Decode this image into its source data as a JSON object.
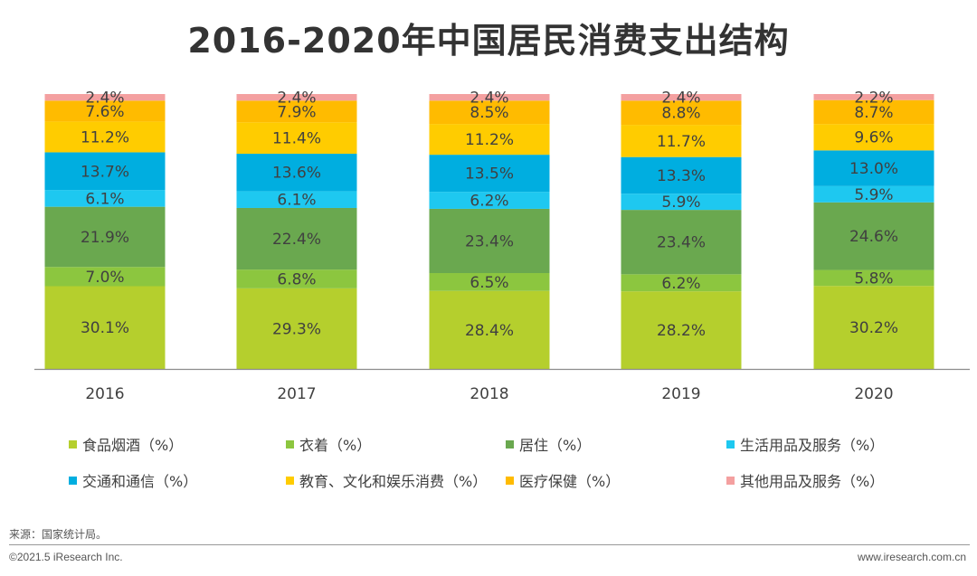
{
  "chart_data": {
    "type": "bar",
    "stacked": true,
    "title": "2016-2020年中国居民消费支出结构",
    "categories": [
      "2016",
      "2017",
      "2018",
      "2019",
      "2020"
    ],
    "series": [
      {
        "name": "食品烟酒（%）",
        "color": "#b5cf2d",
        "values": [
          30.1,
          29.3,
          28.4,
          28.2,
          30.2
        ]
      },
      {
        "name": "衣着（%）",
        "color": "#8cc63f",
        "values": [
          7.0,
          6.8,
          6.5,
          6.2,
          5.8
        ]
      },
      {
        "name": "居住（%）",
        "color": "#6aa84f",
        "values": [
          21.9,
          22.4,
          23.4,
          23.4,
          24.6
        ]
      },
      {
        "name": "生活用品及服务（%）",
        "color": "#1ec8f0",
        "values": [
          6.1,
          6.1,
          6.2,
          5.9,
          5.9
        ]
      },
      {
        "name": "交通和通信（%）",
        "color": "#00aee0",
        "values": [
          13.7,
          13.6,
          13.5,
          13.3,
          13.0
        ]
      },
      {
        "name": "教育、文化和娱乐消费（%）",
        "color": "#ffcc00",
        "values": [
          11.2,
          11.4,
          11.2,
          11.7,
          9.6
        ]
      },
      {
        "name": "医疗保健（%）",
        "color": "#ffbb00",
        "values": [
          7.6,
          7.9,
          8.5,
          8.8,
          8.7
        ]
      },
      {
        "name": "其他用品及服务（%）",
        "color": "#f4a0a0",
        "values": [
          2.4,
          2.4,
          2.4,
          2.4,
          2.2
        ]
      }
    ],
    "ylim": [
      0,
      100
    ],
    "xlabel": "",
    "ylabel": "",
    "legend_position": "bottom",
    "legend_order": [
      0,
      1,
      2,
      3,
      4,
      5,
      6,
      7
    ]
  },
  "footer": {
    "source": "来源：国家统计局。",
    "copyright": "©2021.5 iResearch Inc.",
    "website": "www.iresearch.com.cn"
  }
}
